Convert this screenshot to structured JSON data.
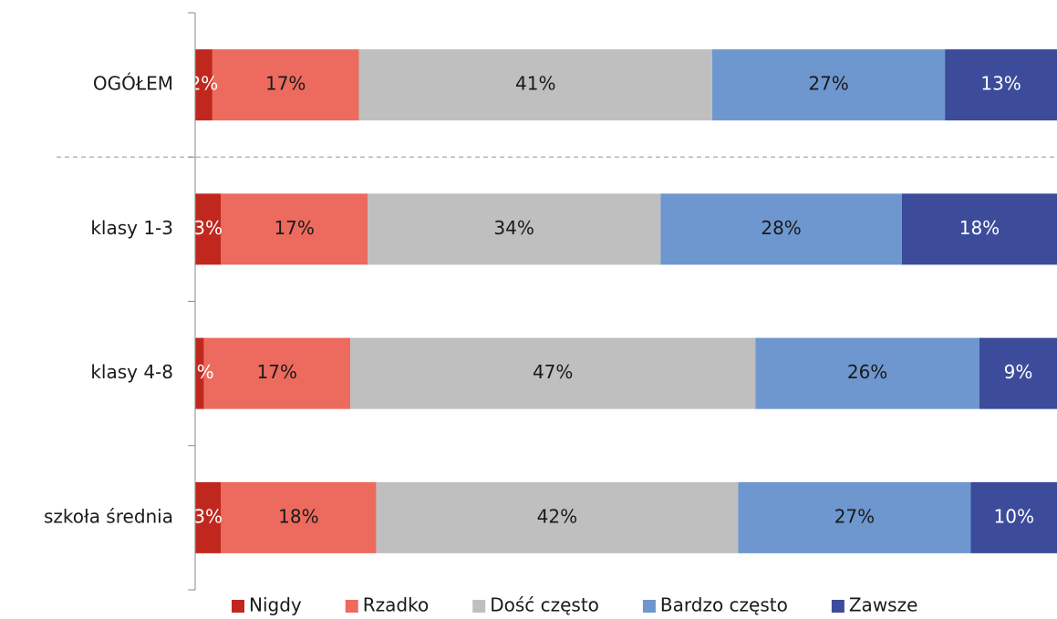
{
  "chart_data": {
    "type": "bar",
    "orientation": "horizontal",
    "stacked": true,
    "categories": [
      "OGÓŁEM",
      "klasy 1-3",
      "klasy 4-8",
      "szkoła średnia"
    ],
    "xlim": [
      0,
      100
    ],
    "legend": "bottom",
    "series": [
      {
        "name": "Nigdy",
        "color": "#c0281e",
        "label_color": "#ffffff",
        "values": [
          2,
          3,
          1,
          3
        ],
        "value_labels": [
          "2%",
          "3%",
          "1%",
          "3%"
        ]
      },
      {
        "name": "Rzadko",
        "color": "#ec6b5e",
        "label_color": "#1a1a1a",
        "values": [
          17,
          17,
          17,
          18
        ],
        "value_labels": [
          "17%",
          "17%",
          "17%",
          "18%"
        ]
      },
      {
        "name": "Dość często",
        "color": "#bfbfbf",
        "label_color": "#1a1a1a",
        "values": [
          41,
          34,
          47,
          42
        ],
        "value_labels": [
          "41%",
          "34%",
          "47%",
          "42%"
        ]
      },
      {
        "name": "Bardzo często",
        "color": "#6e97cf",
        "label_color": "#1a1a1a",
        "values": [
          27,
          28,
          26,
          27
        ],
        "value_labels": [
          "27%",
          "28%",
          "26%",
          "27%"
        ]
      },
      {
        "name": "Zawsze",
        "color": "#3c4b9a",
        "label_color": "#ffffff",
        "values": [
          13,
          18,
          9,
          10
        ],
        "value_labels": [
          "13%",
          "18%",
          "9%",
          "10%"
        ]
      }
    ]
  }
}
